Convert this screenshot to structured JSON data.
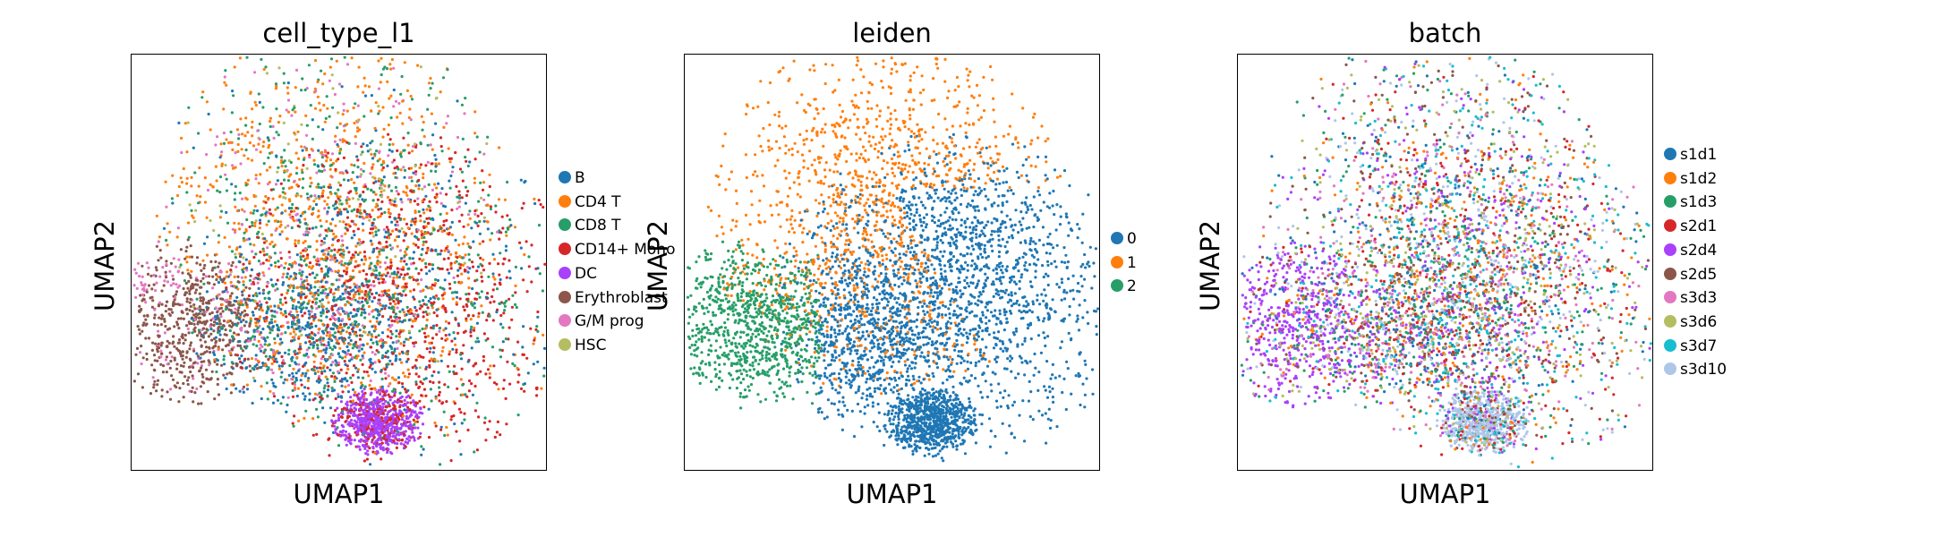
{
  "chart_data": [
    {
      "type": "scatter",
      "title": "cell_type_l1",
      "xlabel": "UMAP1",
      "ylabel": "UMAP2",
      "legend_position": "right",
      "categories": [
        {
          "name": "B",
          "color": "#1f77b4"
        },
        {
          "name": "CD4 T",
          "color": "#ff7f0e"
        },
        {
          "name": "CD8 T",
          "color": "#279e68"
        },
        {
          "name": "CD14+ Mono",
          "color": "#d62728"
        },
        {
          "name": "DC",
          "color": "#aa40fc"
        },
        {
          "name": "Erythroblast",
          "color": "#8c564b"
        },
        {
          "name": "G/M prog",
          "color": "#e377c2"
        },
        {
          "name": "HSC",
          "color": "#b5bd61"
        }
      ]
    },
    {
      "type": "scatter",
      "title": "leiden",
      "xlabel": "UMAP1",
      "ylabel": "UMAP2",
      "legend_position": "right",
      "categories": [
        {
          "name": "0",
          "color": "#1f77b4"
        },
        {
          "name": "1",
          "color": "#ff7f0e"
        },
        {
          "name": "2",
          "color": "#279e68"
        }
      ]
    },
    {
      "type": "scatter",
      "title": "batch",
      "xlabel": "UMAP1",
      "ylabel": "UMAP2",
      "legend_position": "right",
      "categories": [
        {
          "name": "s1d1",
          "color": "#1f77b4"
        },
        {
          "name": "s1d2",
          "color": "#ff7f0e"
        },
        {
          "name": "s1d3",
          "color": "#279e68"
        },
        {
          "name": "s2d1",
          "color": "#d62728"
        },
        {
          "name": "s2d4",
          "color": "#aa40fc"
        },
        {
          "name": "s2d5",
          "color": "#8c564b"
        },
        {
          "name": "s3d3",
          "color": "#e377c2"
        },
        {
          "name": "s3d6",
          "color": "#b5bd61"
        },
        {
          "name": "s3d7",
          "color": "#17becf"
        },
        {
          "name": "s3d10",
          "color": "#aec7e8"
        }
      ]
    }
  ]
}
